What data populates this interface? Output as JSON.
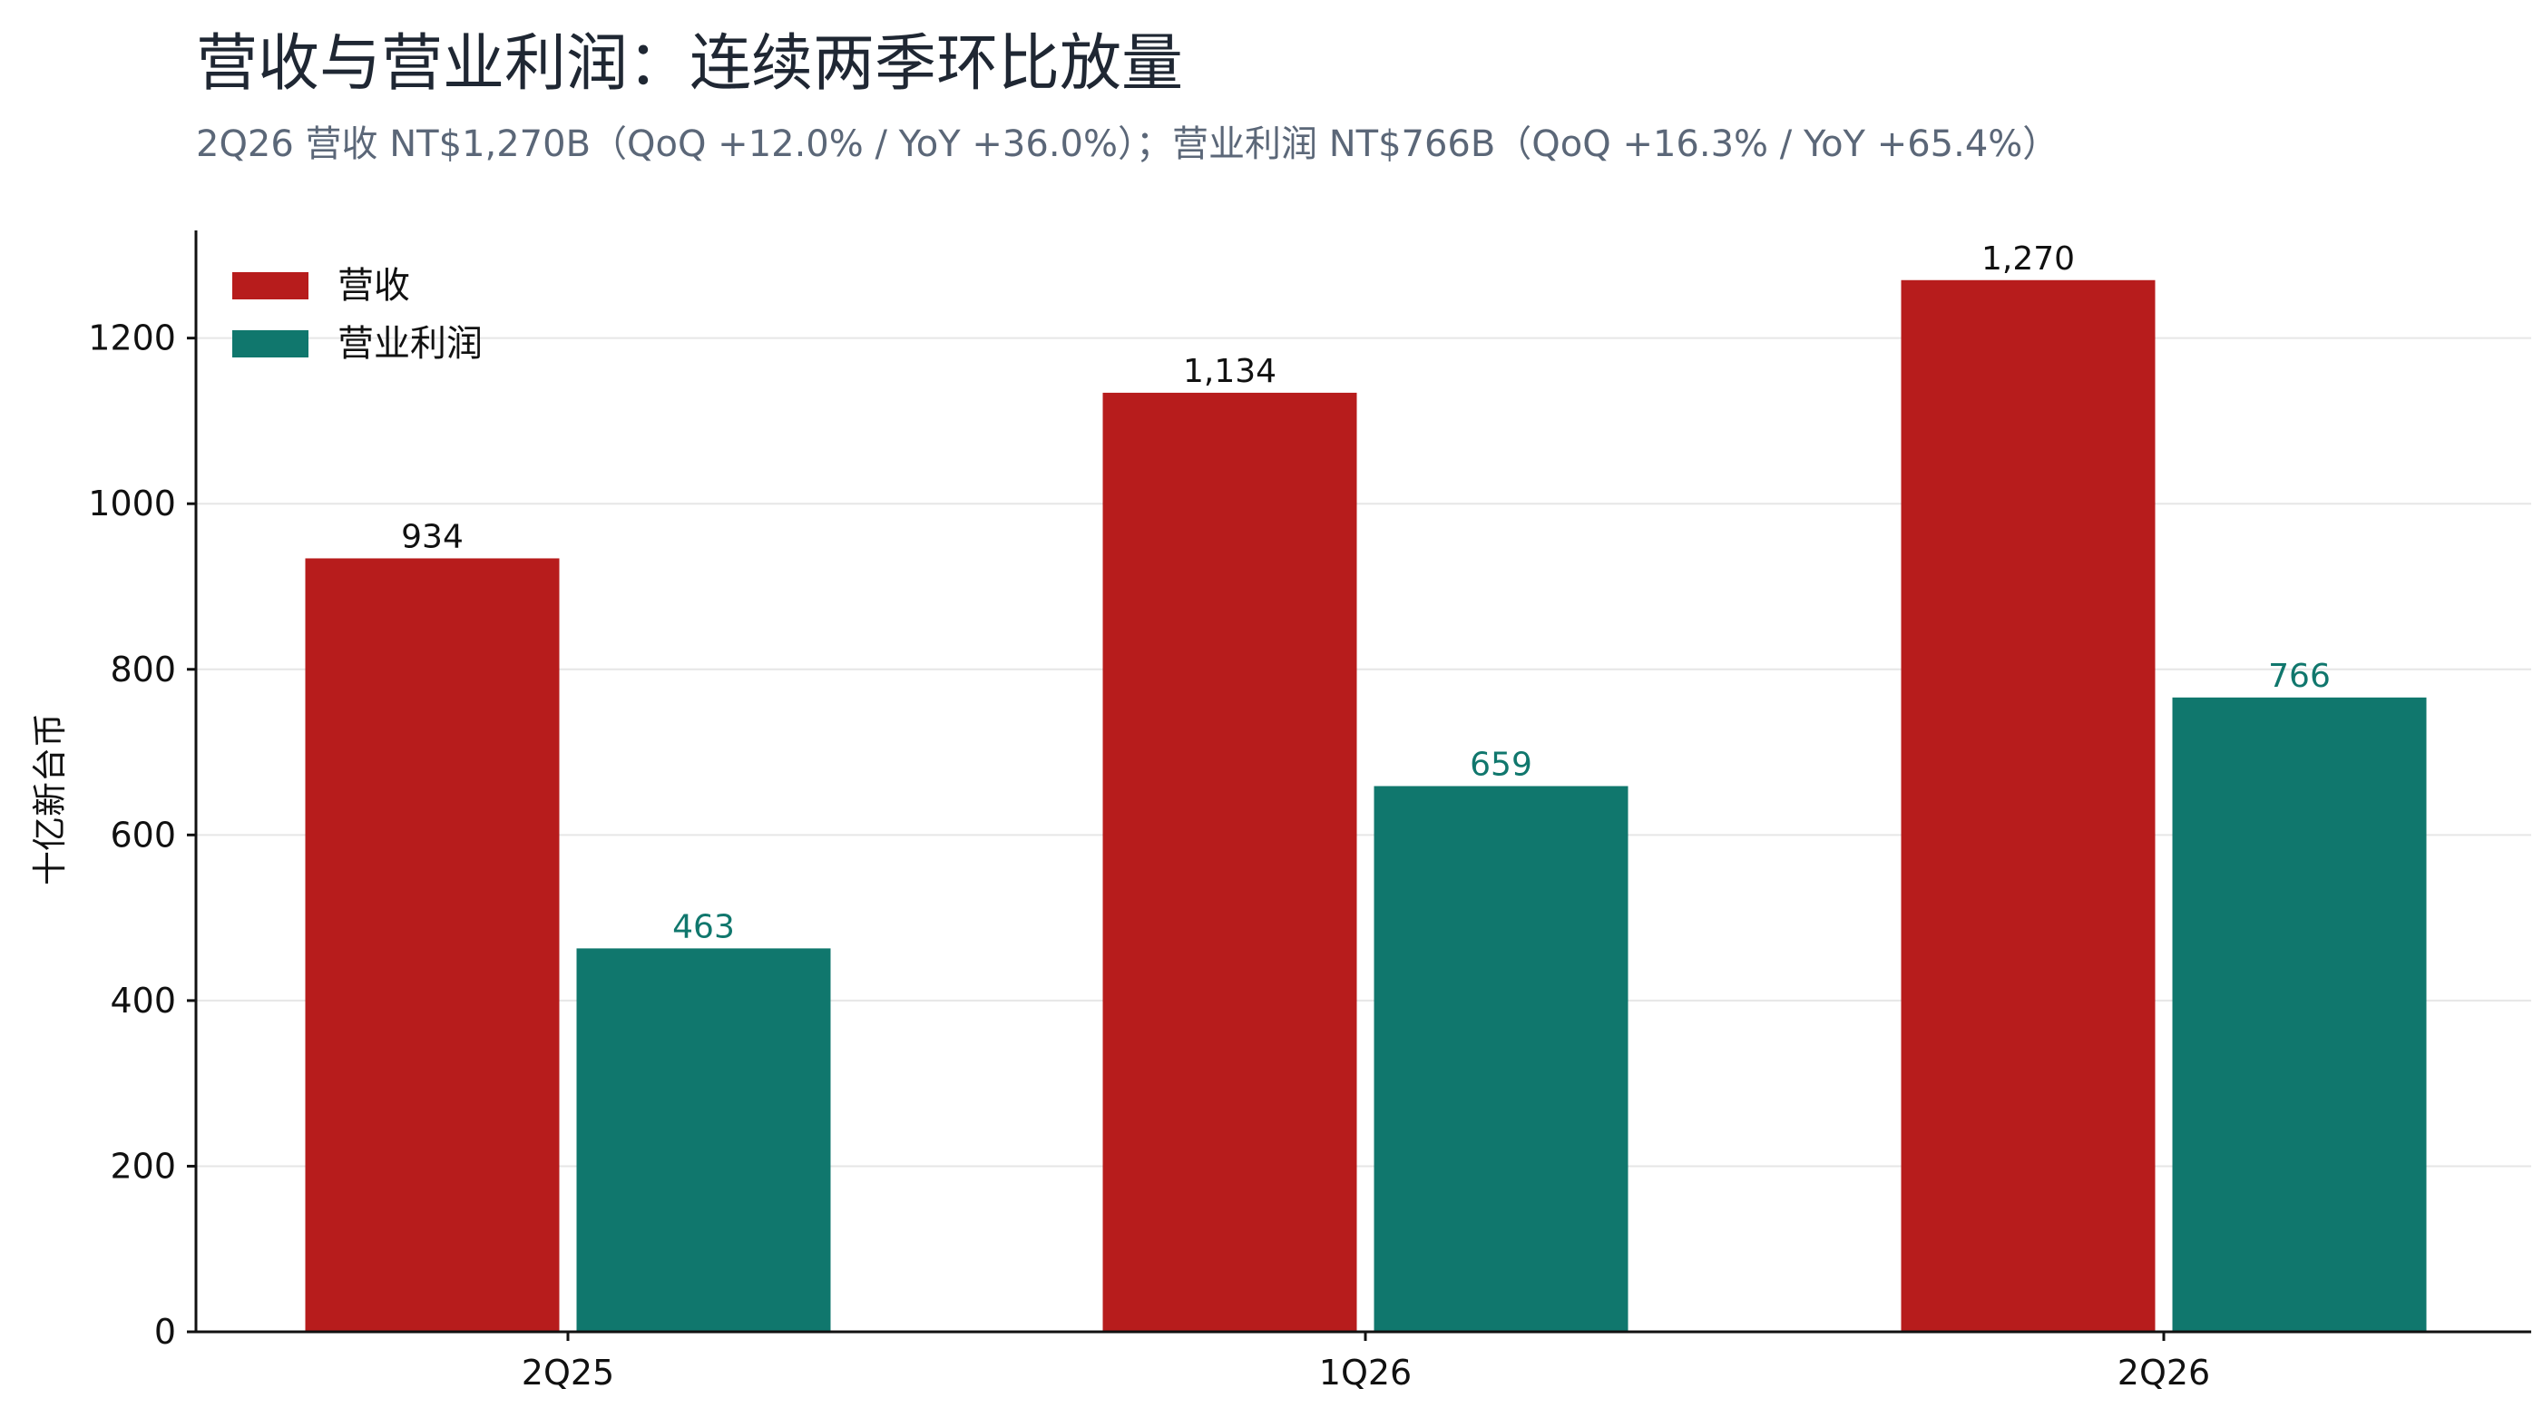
{
  "colors": {
    "revenue": "#b71c1c",
    "operating_profit": "#10776d",
    "text": "#111111",
    "title": "#1f2733",
    "subtitle": "#5b6778",
    "grid": "#e6e6e6",
    "axis": "#111111"
  },
  "chart_data": {
    "type": "bar",
    "title": "营收与营业利润：连续两季环比放量",
    "subtitle": "2Q26 营收 NT$1,270B（QoQ +12.0% / YoY +36.0%）；营业利润 NT$766B（QoQ +16.3% / YoY +65.4%）",
    "xlabel": "",
    "ylabel": "十亿新台币",
    "categories": [
      "2Q25",
      "1Q26",
      "2Q26"
    ],
    "ylim": [
      0,
      1330
    ],
    "yticks": [
      0,
      200,
      400,
      600,
      800,
      1000,
      1200
    ],
    "grid": true,
    "legend_position": "top-left",
    "series": [
      {
        "name": "营收",
        "values": [
          934,
          1134,
          1270
        ],
        "labels": [
          "934",
          "1,134",
          "1,270"
        ],
        "color": "#b71c1c",
        "label_color": "#111111"
      },
      {
        "name": "营业利润",
        "values": [
          463,
          659,
          766
        ],
        "labels": [
          "463",
          "659",
          "766"
        ],
        "color": "#10776d",
        "label_color": "#10776d"
      }
    ]
  }
}
